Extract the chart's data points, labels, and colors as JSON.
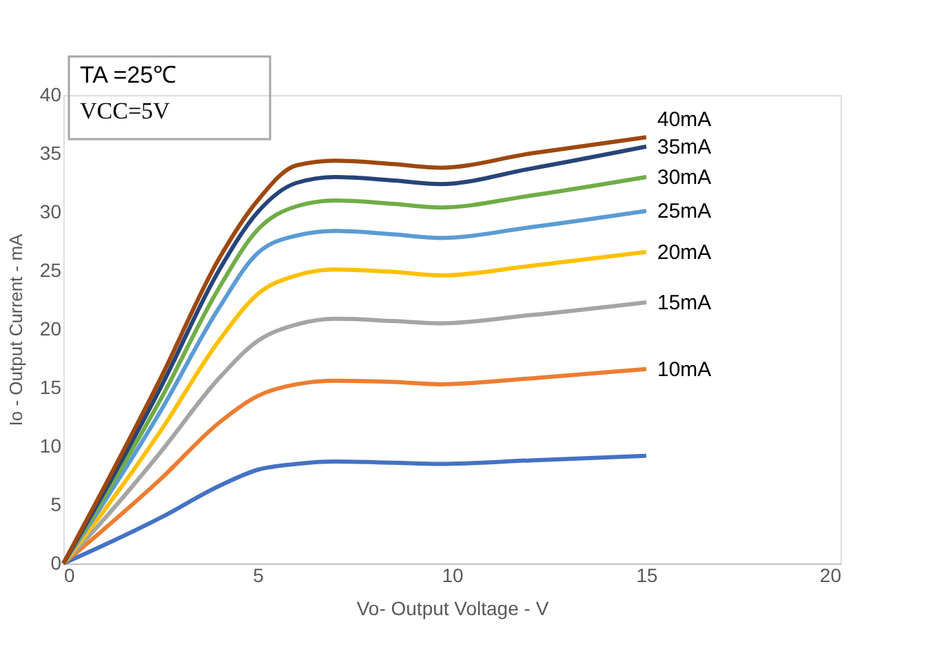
{
  "chart_data": {
    "type": "line",
    "xlabel": "Vo- Output Voltage - V",
    "ylabel": "Io - Output Current - mA",
    "annotations": [
      "TA =25℃",
      "VCC=5V"
    ],
    "x": [
      0,
      1,
      2.5,
      4,
      5,
      6,
      7,
      8.5,
      9.7,
      12,
      15
    ],
    "xlim": [
      0,
      20
    ],
    "xticks": [
      0,
      5,
      10,
      15,
      20
    ],
    "ylim": [
      0,
      40
    ],
    "yticks": [
      0,
      5,
      10,
      15,
      20,
      25,
      30,
      35,
      40
    ],
    "marker": "none",
    "line_style": "solid",
    "series": [
      {
        "name": null,
        "color": "#4472c4",
        "values": [
          0,
          1.5,
          3.9,
          6.6,
          8,
          8.5,
          8.7,
          8.6,
          8.5,
          8.8,
          9.2
        ]
      },
      {
        "name": "10mA",
        "color": "#ed7d31",
        "values": [
          0,
          2.8,
          7.2,
          12,
          14.3,
          15.3,
          15.6,
          15.5,
          15.3,
          15.8,
          16.6
        ]
      },
      {
        "name": "15mA",
        "color": "#a5a5a5",
        "values": [
          0,
          3.6,
          9.5,
          15.8,
          19,
          20.4,
          20.9,
          20.7,
          20.5,
          21.2,
          22.3
        ]
      },
      {
        "name": "20mA",
        "color": "#ffc000",
        "values": [
          0,
          4.3,
          11.3,
          19,
          23,
          24.6,
          25.1,
          24.9,
          24.6,
          25.4,
          26.6
        ]
      },
      {
        "name": "25mA",
        "color": "#5b9bd5",
        "values": [
          0,
          5,
          13,
          21.8,
          26.5,
          28,
          28.4,
          28.1,
          27.8,
          28.7,
          30.1
        ]
      },
      {
        "name": "30mA",
        "color": "#70ad47",
        "values": [
          0,
          5.4,
          14,
          23.5,
          28.5,
          30.5,
          31,
          30.7,
          30.4,
          31.4,
          33
        ]
      },
      {
        "name": "35mA",
        "color": "#264478",
        "values": [
          0,
          5.8,
          15,
          25,
          30,
          32.5,
          33,
          32.7,
          32.4,
          33.7,
          35.6
        ]
      },
      {
        "name": "40mA",
        "color": "#9e480e",
        "values": [
          0,
          6.2,
          15.8,
          26,
          31,
          34,
          34.4,
          34.1,
          33.8,
          35,
          36.4
        ]
      }
    ]
  }
}
